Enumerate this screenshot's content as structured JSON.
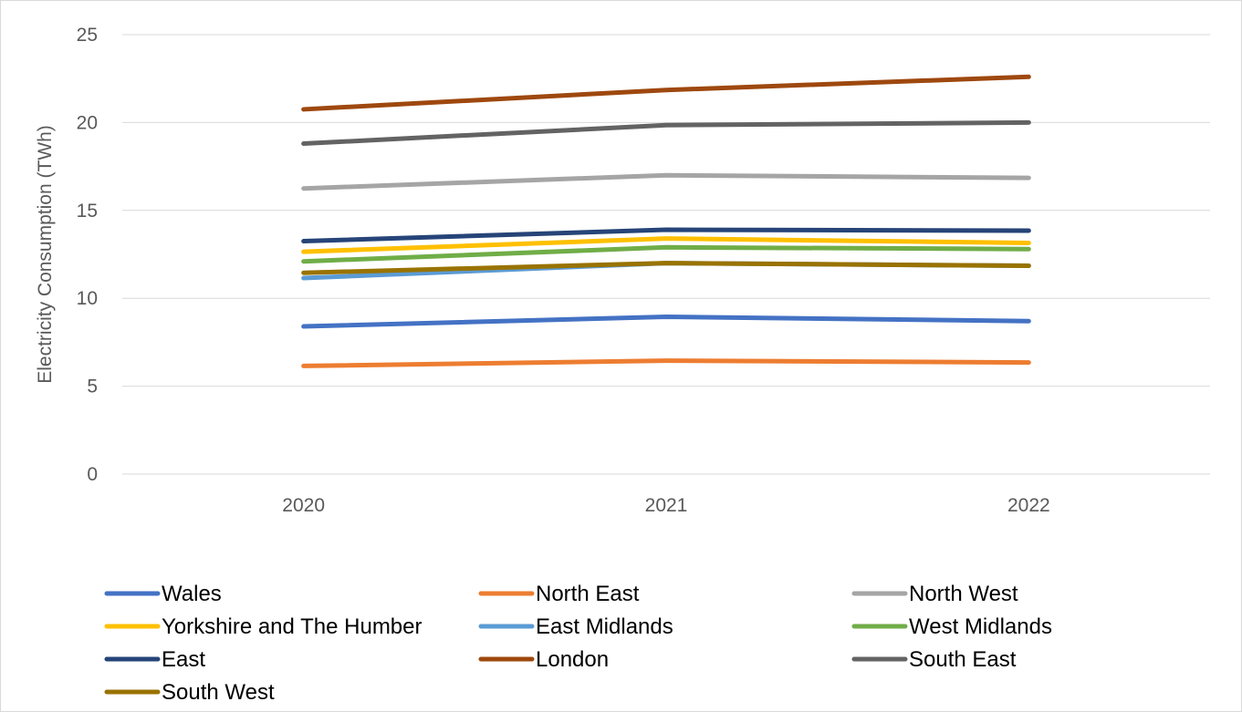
{
  "chart_data": {
    "type": "line",
    "title": "",
    "xlabel": "",
    "ylabel": "Electricity Consumption (TWh)",
    "categories": [
      "2020",
      "2021",
      "2022"
    ],
    "ylim": [
      0,
      25
    ],
    "yticks": [
      0,
      5,
      10,
      15,
      20,
      25
    ],
    "grid": true,
    "legend_position": "bottom",
    "series": [
      {
        "name": "Wales",
        "color": "#4472C4",
        "values": [
          8.4,
          8.95,
          8.7
        ]
      },
      {
        "name": "North East",
        "color": "#ED7D31",
        "values": [
          6.15,
          6.45,
          6.35
        ]
      },
      {
        "name": "North West",
        "color": "#A5A5A5",
        "values": [
          16.25,
          17.0,
          16.85
        ]
      },
      {
        "name": "Yorkshire and The Humber",
        "color": "#FFC000",
        "values": [
          12.65,
          13.4,
          13.15
        ]
      },
      {
        "name": "East Midlands",
        "color": "#5B9BD5",
        "values": [
          11.15,
          12.0,
          11.85
        ]
      },
      {
        "name": "West Midlands",
        "color": "#70AD47",
        "values": [
          12.1,
          12.9,
          12.8
        ]
      },
      {
        "name": "East",
        "color": "#264478",
        "values": [
          13.25,
          13.9,
          13.85
        ]
      },
      {
        "name": "London",
        "color": "#9E480E",
        "values": [
          20.75,
          21.85,
          22.6
        ]
      },
      {
        "name": "South East",
        "color": "#636363",
        "values": [
          18.8,
          19.85,
          20.0
        ]
      },
      {
        "name": "South West",
        "color": "#997300",
        "values": [
          11.45,
          12.0,
          11.85
        ]
      }
    ]
  }
}
